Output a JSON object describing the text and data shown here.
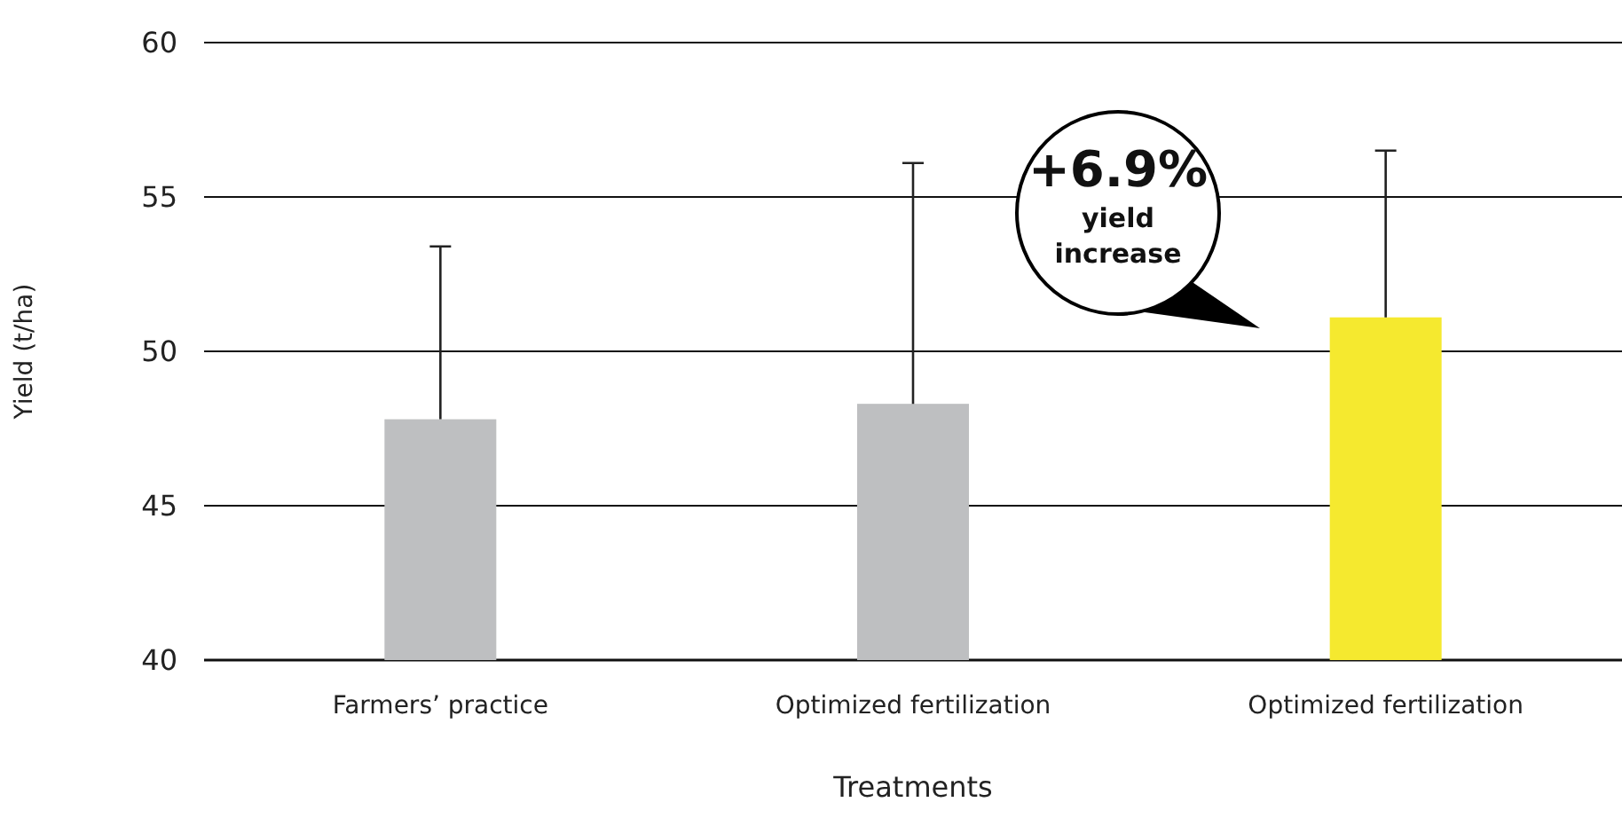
{
  "chart_data": {
    "type": "bar",
    "xlabel": "Treatments",
    "ylabel": "Yield (t/ha)",
    "categories": [
      "Farmers’ practice",
      "Optimized fertilization",
      "Optimized fertilization"
    ],
    "values": [
      47.8,
      48.3,
      51.1
    ],
    "colors": [
      "#bebfc1",
      "#bebfc1",
      "#f5e92f"
    ],
    "errors": [
      [
        47.8,
        53.4
      ],
      [
        48.3,
        56.1
      ],
      [
        51.1,
        56.5
      ]
    ],
    "ylim": [
      40,
      60
    ],
    "yticks": [
      40,
      45,
      50,
      55,
      60
    ],
    "grid": "y",
    "annotations": [
      "+6.9%\nyield\nincrease"
    ]
  }
}
